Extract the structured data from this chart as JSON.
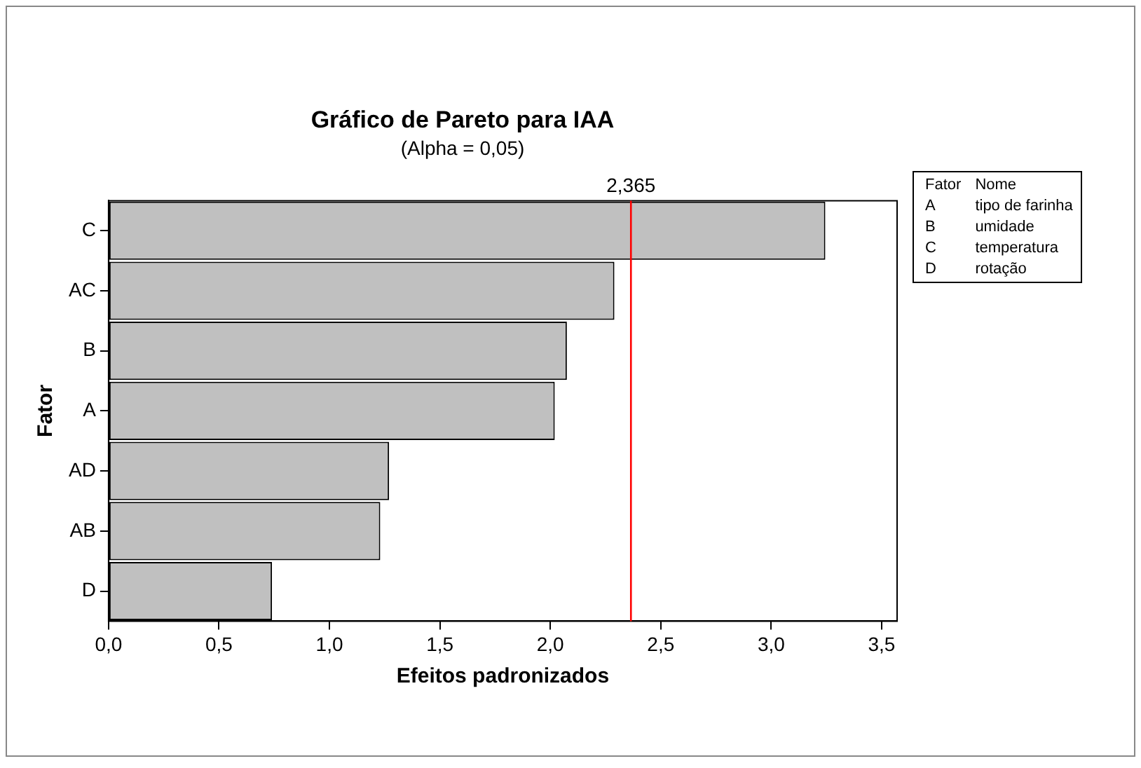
{
  "chart_data": {
    "type": "bar",
    "orientation": "horizontal",
    "title": "Gráfico de Pareto para IAA",
    "subtitle": "(Alpha = 0,05)",
    "xlabel": "Efeitos padronizados",
    "ylabel": "Fator",
    "categories": [
      "C",
      "AC",
      "B",
      "A",
      "AD",
      "AB",
      "D"
    ],
    "values": [
      3.245,
      2.29,
      2.075,
      2.02,
      1.27,
      1.23,
      0.74
    ],
    "color": "#c0c0c0",
    "xlim": [
      0,
      3.57
    ],
    "xticks": [
      {
        "value": 0,
        "label": "0,0"
      },
      {
        "value": 0.5,
        "label": "0,5"
      },
      {
        "value": 1,
        "label": "1,0"
      },
      {
        "value": 1.5,
        "label": "1,5"
      },
      {
        "value": 2,
        "label": "2,0"
      },
      {
        "value": 2.5,
        "label": "2,5"
      },
      {
        "value": 3,
        "label": "3,0"
      },
      {
        "value": 3.5,
        "label": "3,5"
      }
    ],
    "ref_lines": [
      {
        "axis": "x",
        "value": 2.365,
        "label": "2,365",
        "color": "#ff0000"
      }
    ],
    "annotations": [
      "Fator",
      "Nome",
      "A",
      "tipo de farinha",
      "B",
      "umidade",
      "C",
      "temperatura",
      "D",
      "rotação"
    ],
    "grid": false,
    "legend": false
  }
}
